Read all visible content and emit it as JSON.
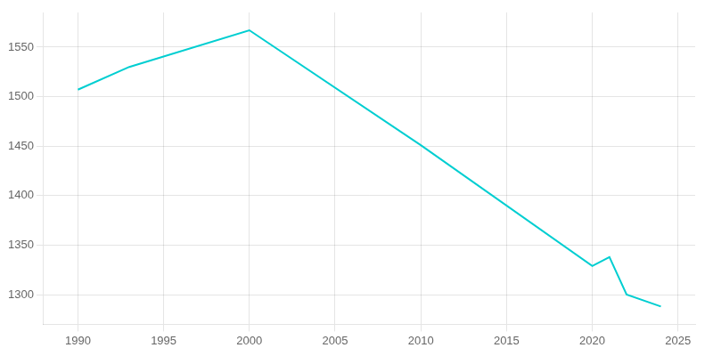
{
  "chart_data": {
    "type": "line",
    "x": [
      1990,
      1993,
      2000,
      2010,
      2020,
      2021,
      2022,
      2024
    ],
    "values": [
      1507,
      1530,
      1567,
      1451,
      1329,
      1338,
      1300,
      1288
    ],
    "color": "#00CED1",
    "xlim": [
      1988,
      2026
    ],
    "ylim": [
      1270,
      1585
    ],
    "xticks": [
      1990,
      1995,
      2000,
      2005,
      2010,
      2015,
      2020,
      2025
    ],
    "yticks": [
      1300,
      1350,
      1400,
      1450,
      1500,
      1550
    ],
    "grid": true
  }
}
